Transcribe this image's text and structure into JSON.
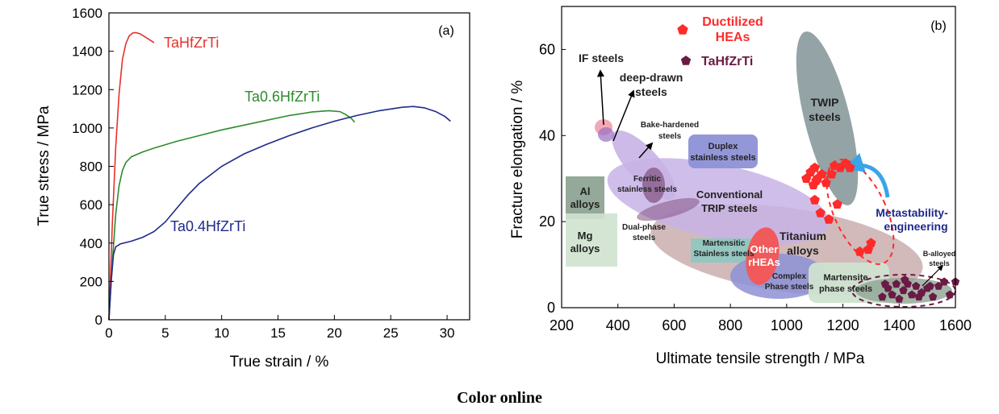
{
  "caption": "Color online",
  "chart_data": [
    {
      "type": "line",
      "panel_label": "(a)",
      "xlabel": "True strain / %",
      "ylabel": "True stress / MPa",
      "xlim": [
        0,
        32
      ],
      "ylim": [
        0,
        1600
      ],
      "xticks": [
        0,
        5,
        10,
        15,
        20,
        25,
        30
      ],
      "yticks": [
        0,
        200,
        400,
        600,
        800,
        1000,
        1200,
        1400,
        1600
      ],
      "grid": false,
      "series": [
        {
          "name": "TaHfZrTi",
          "color": "#e8302c",
          "x": [
            0,
            0.3,
            0.6,
            0.9,
            1.2,
            1.5,
            1.8,
            2.1,
            2.4,
            2.8,
            3.2,
            3.6,
            4.0
          ],
          "y": [
            0,
            500,
            900,
            1180,
            1360,
            1440,
            1480,
            1495,
            1497,
            1490,
            1475,
            1460,
            1445
          ]
        },
        {
          "name": "Ta0.6HfZrTi",
          "color": "#2e8b2e",
          "x": [
            0,
            0.3,
            0.6,
            0.9,
            1.2,
            1.5,
            2,
            3,
            4,
            6,
            8,
            10,
            12,
            14,
            16,
            18,
            19.5,
            20.5,
            21,
            21.5,
            21.8
          ],
          "y": [
            0,
            300,
            550,
            700,
            780,
            820,
            850,
            875,
            895,
            930,
            960,
            990,
            1015,
            1040,
            1065,
            1083,
            1090,
            1085,
            1070,
            1050,
            1030
          ]
        },
        {
          "name": "Ta0.4HfZrTi",
          "color": "#1e2a8a",
          "x": [
            0,
            0.2,
            0.4,
            0.6,
            1,
            2,
            3,
            4,
            5,
            6,
            7,
            8,
            10,
            12,
            14,
            16,
            18,
            20,
            22,
            24,
            26,
            27,
            28,
            29,
            29.8,
            30.3
          ],
          "y": [
            0,
            200,
            340,
            380,
            395,
            410,
            430,
            460,
            510,
            580,
            650,
            710,
            800,
            865,
            915,
            960,
            1000,
            1035,
            1065,
            1090,
            1108,
            1112,
            1105,
            1085,
            1060,
            1035
          ]
        }
      ],
      "annotations": [
        {
          "text": "TaHfZrTi",
          "color": "#e8302c"
        },
        {
          "text": "Ta0.6HfZrTi",
          "color": "#2e8b2e"
        },
        {
          "text": "Ta0.4HfZrTi",
          "color": "#1e2a8a"
        }
      ]
    },
    {
      "type": "scatter",
      "panel_label": "(b)",
      "xlabel": "Ultimate tensile strength / MPa",
      "ylabel": "Fracture elongation / %",
      "xlim": [
        200,
        1600
      ],
      "ylim": [
        0,
        70
      ],
      "xticks": [
        200,
        400,
        600,
        800,
        1000,
        1200,
        1400,
        1600
      ],
      "yticks": [
        0,
        20,
        40,
        60
      ],
      "grid": false,
      "legend": {
        "position": "top-center",
        "entries": [
          {
            "label": "Ductilized HEAs",
            "color": "#ff2a2a",
            "marker": "pentagon"
          },
          {
            "label": "TaHfZrTi",
            "color": "#6a1a45",
            "marker": "pentagon"
          }
        ]
      },
      "region_labels": {
        "if": "IF steels",
        "deep": "deep-drawn steels",
        "bake": "Bake-hardened steels",
        "duplex": "Duplex stainless steels",
        "twip": "TWIP steels",
        "al": "Al alloys",
        "mg": "Mg alloys",
        "ferritic": "Ferritic stainless steels",
        "trip": "Conventional TRIP steels",
        "dual": "Dual-phase steels",
        "martensitic": "Martensitic Stainless steels",
        "rhea": "Other rHEAs",
        "ti": "Titanium alloys",
        "complex": "Complex Phase steels",
        "martensite": "Martensite phase steels",
        "boron": "B-alloyed steels",
        "meta": "Metastability-engineering"
      },
      "series": [
        {
          "name": "Ductilized HEAs",
          "color": "#ff2a2a",
          "x": [
            1070,
            1085,
            1100,
            1110,
            1125,
            1105,
            1095,
            1140,
            1160,
            1170,
            1190,
            1210,
            1225,
            1100,
            1120,
            1150,
            1180,
            1260,
            1300,
            1290
          ],
          "y": [
            30,
            31.5,
            32.5,
            30,
            31,
            29.5,
            28.5,
            29,
            31,
            33,
            32.5,
            33.5,
            32.5,
            25,
            22,
            20.5,
            24,
            13,
            15,
            13.5
          ]
        },
        {
          "name": "TaHfZrTi",
          "color": "#6a1a45",
          "x": [
            1340,
            1360,
            1375,
            1390,
            1400,
            1415,
            1430,
            1445,
            1460,
            1480,
            1500,
            1520,
            1540,
            1560,
            1580,
            1600,
            1350,
            1420,
            1470,
            1510
          ],
          "y": [
            2.5,
            4.5,
            3,
            5.5,
            2,
            4,
            5.5,
            3,
            5,
            3.5,
            4.5,
            2.5,
            5,
            6,
            3,
            6,
            5.5,
            6.5,
            2.5,
            5
          ]
        }
      ]
    }
  ]
}
